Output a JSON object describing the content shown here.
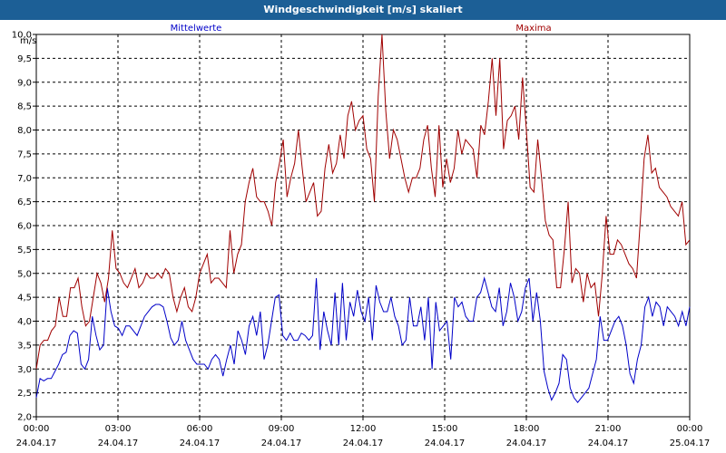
{
  "window": {
    "title": "Windgeschwindigkeit [m/s] skaliert"
  },
  "chart_data": {
    "type": "line",
    "ylabel": "m/s",
    "ylim": [
      2.0,
      10.0
    ],
    "xlim": [
      0,
      24
    ],
    "yticks": [
      "2,0",
      "2,5",
      "3,0",
      "3,5",
      "4,0",
      "4,5",
      "5,0",
      "5,5",
      "6,0",
      "6,5",
      "7,0",
      "7,5",
      "8,0",
      "8,5",
      "9,0",
      "9,5",
      "10,0"
    ],
    "xticks": [
      {
        "time": "00:00",
        "date": "24.04.17"
      },
      {
        "time": "03:00",
        "date": "24.04.17"
      },
      {
        "time": "06:00",
        "date": "24.04.17"
      },
      {
        "time": "09:00",
        "date": "24.04.17"
      },
      {
        "time": "12:00",
        "date": "24.04.17"
      },
      {
        "time": "15:00",
        "date": "24.04.17"
      },
      {
        "time": "18:00",
        "date": "24.04.17"
      },
      {
        "time": "21:00",
        "date": "24.04.17"
      },
      {
        "time": "00:00",
        "date": "25.04.17"
      }
    ],
    "grid": true,
    "series": [
      {
        "name": "Mittelwerte",
        "color": "#0000c8",
        "values": [
          2.4,
          2.8,
          2.75,
          2.8,
          2.8,
          2.95,
          3.1,
          3.3,
          3.35,
          3.7,
          3.8,
          3.75,
          3.1,
          3.0,
          3.2,
          4.1,
          3.7,
          3.4,
          3.5,
          4.7,
          4.2,
          3.9,
          3.85,
          3.7,
          3.9,
          3.9,
          3.8,
          3.7,
          3.9,
          4.1,
          4.2,
          4.3,
          4.35,
          4.35,
          4.3,
          4.0,
          3.65,
          3.5,
          3.6,
          4.0,
          3.6,
          3.4,
          3.2,
          3.1,
          3.1,
          3.1,
          3.0,
          3.2,
          3.3,
          3.2,
          2.85,
          3.2,
          3.5,
          3.1,
          3.8,
          3.6,
          3.3,
          3.9,
          4.1,
          3.7,
          4.2,
          3.2,
          3.5,
          4.0,
          4.5,
          4.55,
          3.7,
          3.6,
          3.75,
          3.6,
          3.6,
          3.75,
          3.7,
          3.6,
          3.7,
          4.9,
          3.4,
          4.2,
          3.8,
          3.5,
          4.6,
          3.5,
          4.8,
          3.6,
          4.4,
          4.1,
          4.65,
          4.2,
          4.0,
          4.5,
          3.6,
          4.75,
          4.4,
          4.2,
          4.2,
          4.5,
          4.1,
          3.9,
          3.5,
          3.6,
          4.5,
          3.9,
          3.9,
          4.3,
          3.6,
          4.5,
          3.0,
          4.4,
          3.8,
          3.9,
          4.0,
          3.2,
          4.5,
          4.3,
          4.4,
          4.1,
          4.0,
          4.0,
          4.5,
          4.6,
          4.9,
          4.6,
          4.3,
          4.2,
          4.7,
          3.9,
          4.2,
          4.8,
          4.5,
          4.0,
          4.2,
          4.7,
          4.9,
          4.0,
          4.6,
          4.0,
          2.95,
          2.6,
          2.35,
          2.5,
          2.7,
          3.3,
          3.2,
          2.6,
          2.4,
          2.3,
          2.4,
          2.5,
          2.6,
          2.9,
          3.2,
          4.1,
          3.6,
          3.6,
          3.8,
          4.0,
          4.1,
          3.9,
          3.5,
          2.9,
          2.7,
          3.2,
          3.5,
          4.3,
          4.5,
          4.1,
          4.4,
          4.3,
          3.9,
          4.3,
          4.2,
          4.1,
          3.9,
          4.2,
          3.9,
          4.3
        ]
      },
      {
        "name": "Maxima",
        "color": "#a00000",
        "values": [
          3.0,
          3.5,
          3.6,
          3.6,
          3.8,
          3.9,
          4.5,
          4.1,
          4.1,
          4.7,
          4.7,
          4.9,
          4.3,
          3.9,
          4.0,
          4.5,
          5.0,
          4.8,
          4.4,
          4.9,
          5.9,
          5.1,
          5.0,
          4.8,
          4.7,
          4.9,
          5.1,
          4.7,
          4.8,
          5.0,
          4.9,
          4.9,
          5.0,
          4.9,
          5.1,
          5.0,
          4.5,
          4.2,
          4.5,
          4.7,
          4.3,
          4.2,
          4.5,
          5.0,
          5.2,
          5.4,
          4.8,
          4.9,
          4.9,
          4.8,
          4.7,
          5.9,
          5.0,
          5.4,
          5.6,
          6.5,
          6.9,
          7.2,
          6.6,
          6.5,
          6.5,
          6.3,
          6.0,
          6.9,
          7.3,
          7.8,
          6.6,
          7.0,
          7.3,
          8.0,
          7.2,
          6.5,
          6.7,
          6.9,
          6.2,
          6.3,
          7.2,
          7.7,
          7.1,
          7.3,
          7.9,
          7.4,
          8.3,
          8.6,
          8.0,
          8.2,
          8.3,
          7.6,
          7.4,
          6.5,
          8.7,
          10.0,
          8.4,
          7.4,
          8.0,
          7.8,
          7.4,
          7.0,
          6.7,
          7.0,
          7.0,
          7.2,
          7.8,
          8.1,
          7.2,
          6.6,
          8.1,
          6.8,
          7.4,
          6.9,
          7.2,
          8.0,
          7.5,
          7.8,
          7.7,
          7.6,
          7.0,
          8.1,
          7.9,
          8.6,
          9.5,
          8.3,
          9.5,
          7.6,
          8.2,
          8.3,
          8.5,
          7.8,
          9.1,
          8.0,
          6.8,
          6.7,
          7.8,
          7.0,
          6.1,
          5.8,
          5.7,
          4.7,
          4.7,
          5.5,
          6.5,
          4.8,
          5.1,
          5.0,
          4.4,
          5.0,
          4.7,
          4.8,
          4.1,
          5.0,
          6.2,
          5.4,
          5.4,
          5.7,
          5.6,
          5.4,
          5.2,
          5.1,
          4.9,
          6.1,
          7.4,
          7.9,
          7.1,
          7.2,
          6.8,
          6.7,
          6.6,
          6.4,
          6.3,
          6.2,
          6.5,
          5.6,
          5.7
        ]
      }
    ]
  }
}
